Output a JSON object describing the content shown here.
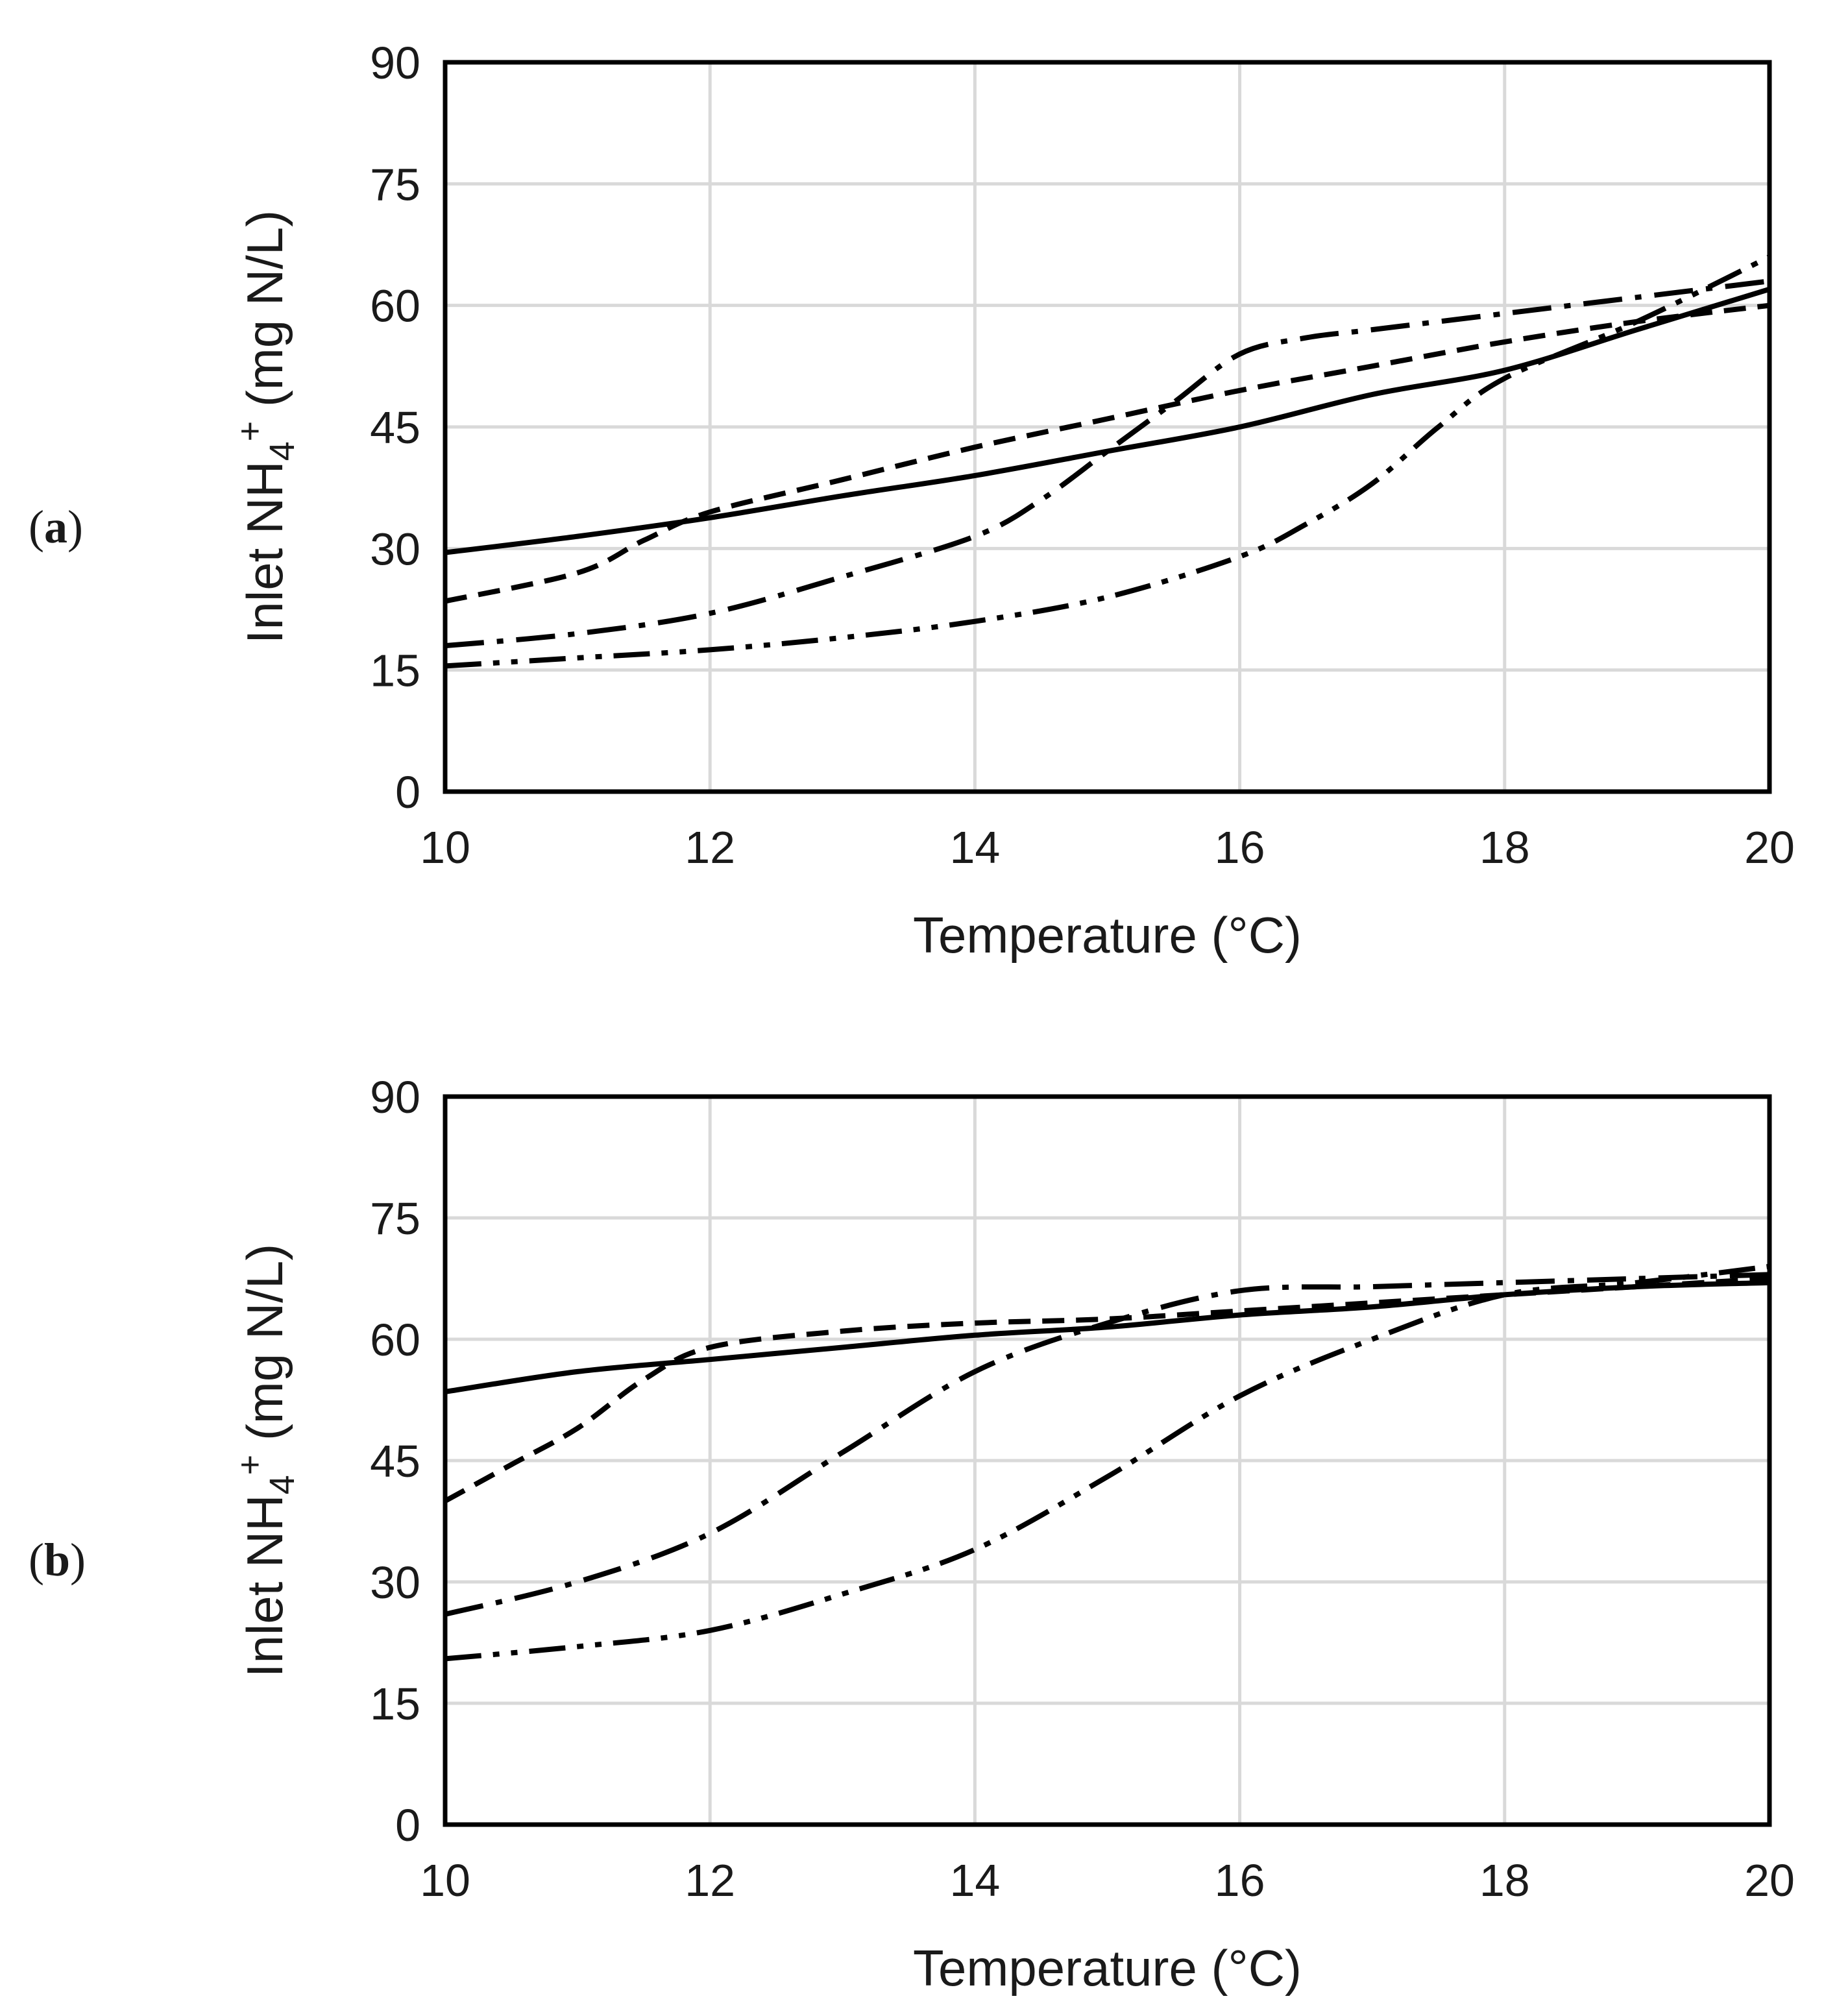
{
  "chart_data": [
    {
      "panel_label": "a",
      "type": "line",
      "xlabel": "Temperature (°C)",
      "ylabel": "Inlet NH4+ (mg N/L)",
      "ylabel_parts": {
        "prefix": "Inlet NH",
        "sub": "4",
        "sup": "+",
        "suffix": " (mg N/L)"
      },
      "xlim": [
        10,
        20
      ],
      "ylim": [
        0,
        90
      ],
      "xticks": [
        10,
        12,
        14,
        16,
        18,
        20
      ],
      "yticks": [
        0,
        15,
        30,
        45,
        60,
        75,
        90
      ],
      "grid": true,
      "series": [
        {
          "name": "solid",
          "dash": "solid",
          "x": [
            10,
            11,
            12,
            13,
            14,
            15,
            16,
            17,
            18,
            19,
            20
          ],
          "y": [
            29.5,
            31.5,
            33.8,
            36.5,
            39,
            42,
            45,
            49,
            52,
            57,
            62
          ]
        },
        {
          "name": "short-dash",
          "dash": "dash",
          "x": [
            10,
            11,
            11.5,
            12,
            13,
            14,
            15,
            16,
            17,
            18,
            19,
            20
          ],
          "y": [
            23.5,
            27,
            31,
            34.5,
            38.5,
            42.5,
            46,
            49.5,
            52.5,
            55.5,
            58,
            60
          ]
        },
        {
          "name": "long-dash-dot",
          "dash": "dashdot",
          "x": [
            10,
            11,
            12,
            13,
            14,
            14.5,
            15,
            15.5,
            16,
            16.5,
            17,
            18,
            19,
            20
          ],
          "y": [
            18,
            19.5,
            22,
            26.5,
            31.5,
            36,
            42,
            48,
            54,
            56,
            57,
            59,
            61,
            63
          ]
        },
        {
          "name": "dash-dot-dot",
          "dash": "dashdotdot",
          "x": [
            10,
            11,
            12,
            13,
            14,
            15,
            16,
            16.5,
            17,
            17.5,
            18,
            19,
            20
          ],
          "y": [
            15.5,
            16.5,
            17.5,
            19,
            21,
            24,
            29,
            33,
            38,
            45,
            51,
            58,
            66
          ]
        }
      ]
    },
    {
      "panel_label": "b",
      "type": "line",
      "xlabel": "Temperature (°C)",
      "ylabel": "Inlet NH4+ (mg N/L)",
      "ylabel_parts": {
        "prefix": "Inlet NH",
        "sub": "4",
        "sup": "+",
        "suffix": " (mg N/L)"
      },
      "xlim": [
        10,
        20
      ],
      "ylim": [
        0,
        90
      ],
      "xticks": [
        10,
        12,
        14,
        16,
        18,
        20
      ],
      "yticks": [
        0,
        15,
        30,
        45,
        60,
        75,
        90
      ],
      "grid": true,
      "series": [
        {
          "name": "solid",
          "dash": "solid",
          "x": [
            10,
            11,
            12,
            13,
            14,
            15,
            16,
            17,
            18,
            19,
            20
          ],
          "y": [
            53.5,
            56,
            57.5,
            59,
            60.5,
            61.5,
            63,
            64,
            65.5,
            66.5,
            67
          ]
        },
        {
          "name": "short-dash",
          "dash": "dash",
          "x": [
            10,
            10.5,
            11,
            11.5,
            12,
            13,
            14,
            15,
            16,
            17,
            18,
            19,
            20
          ],
          "y": [
            40,
            44.5,
            49,
            55,
            59,
            61,
            62,
            62.5,
            63.5,
            64.5,
            65.5,
            66.5,
            67.5
          ]
        },
        {
          "name": "long-dash-dot",
          "dash": "dashdot",
          "x": [
            10,
            11,
            12,
            13,
            14,
            15,
            16,
            17,
            18,
            19,
            20
          ],
          "y": [
            26,
            30,
            36,
            46,
            56,
            62,
            66,
            66.5,
            67,
            67.5,
            68
          ]
        },
        {
          "name": "dash-dot-dot",
          "dash": "dashdotdot",
          "x": [
            10,
            11,
            12,
            13,
            14,
            15,
            16,
            17,
            18,
            19,
            20
          ],
          "y": [
            20.5,
            22,
            24,
            28.5,
            34,
            43,
            53,
            60,
            65.5,
            67,
            69
          ]
        }
      ]
    }
  ]
}
